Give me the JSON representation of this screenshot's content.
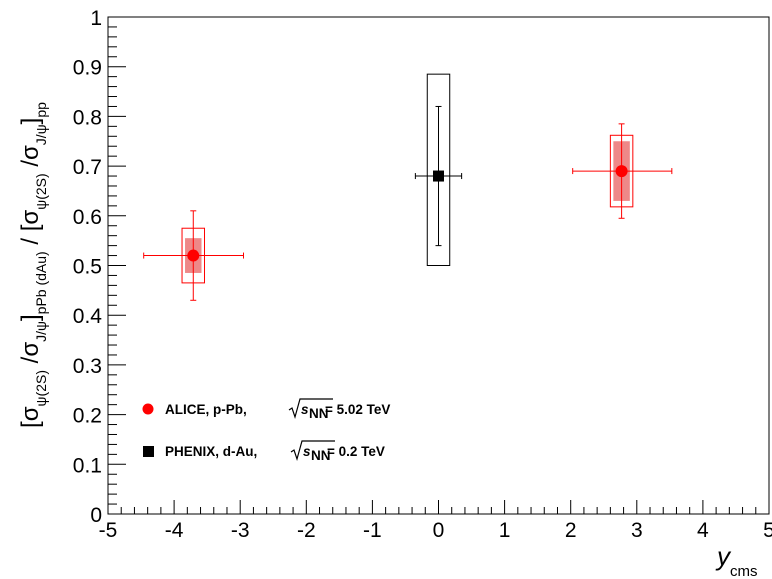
{
  "chart_data": {
    "type": "scatter",
    "xlim": [
      -5,
      5
    ],
    "ylim": [
      0,
      1
    ],
    "xticks": [
      -5,
      -4,
      -3,
      -2,
      -1,
      0,
      1,
      2,
      3,
      4,
      5
    ],
    "yticks": [
      0,
      0.1,
      0.2,
      0.3,
      0.4,
      0.5,
      0.6,
      0.7,
      0.8,
      0.9,
      1
    ],
    "xtick_labels": [
      "-5",
      "-4",
      "-3",
      "-2",
      "-1",
      "0",
      "1",
      "2",
      "3",
      "4",
      "5"
    ],
    "ytick_labels": [
      "0",
      "0.1",
      "0.2",
      "0.3",
      "0.4",
      "0.5",
      "0.6",
      "0.7",
      "0.8",
      "0.9",
      "1"
    ],
    "xlabel": {
      "main": "y",
      "sub": "cms"
    },
    "ylabel": {
      "main_1": "[σ",
      "sub_1": "ψ(2S)",
      "main_2": " /σ",
      "sub_2": "J/ψ",
      "main_3": "]",
      "sub_3": "pPb (dAu)",
      "main_4": " / [σ",
      "sub_4": "ψ(2S)",
      "main_5": " /σ",
      "sub_5": "J/ψ",
      "main_6": "]",
      "sub_6": "pp"
    },
    "grid": false,
    "legend_position": "bottom-left",
    "series": [
      {
        "name": "ALICE, p-Pb,",
        "energy_value": "= 5.02 TeV",
        "marker": "circle",
        "color": "#ff0000",
        "points": [
          {
            "x": -3.71,
            "y": 0.52,
            "xerr": [
              0.75,
              0.76
            ],
            "stat": [
              0.09,
              0.09
            ],
            "syst_x": 0.17,
            "syst": [
              0.055,
              0.055
            ],
            "corr": [
              0.035,
              0.035
            ]
          },
          {
            "x": 2.77,
            "y": 0.69,
            "xerr": [
              0.74,
              0.76
            ],
            "stat": [
              0.095,
              0.095
            ],
            "syst_x": 0.17,
            "syst": [
              0.072,
              0.072
            ],
            "corr": [
              0.06,
              0.06
            ]
          }
        ]
      },
      {
        "name": "PHENIX, d-Au,",
        "energy_value": "= 0.2 TeV",
        "marker": "square",
        "color": "#000000",
        "points": [
          {
            "x": 0.0,
            "y": 0.68,
            "xerr": [
              0.35,
              0.35
            ],
            "stat": [
              0.14,
              0.14
            ],
            "syst_x": 0.17,
            "syst": [
              0.18,
              0.205
            ]
          }
        ]
      }
    ],
    "legend_energy_symbol": "s",
    "legend_energy_sub": "NN"
  }
}
